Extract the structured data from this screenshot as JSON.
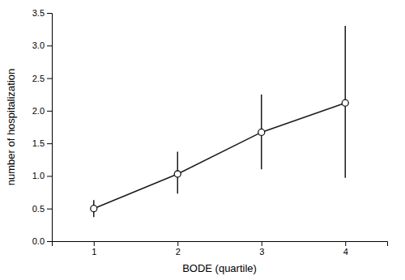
{
  "chart_data": {
    "type": "line",
    "xlabel": "BODE (quartile)",
    "ylabel": "number of hospitalization",
    "x": [
      1,
      2,
      3,
      4
    ],
    "values": [
      0.5,
      1.03,
      1.67,
      2.12
    ],
    "upper": [
      0.63,
      1.37,
      2.25,
      3.3
    ],
    "lower": [
      0.37,
      0.73,
      1.1,
      0.97
    ],
    "color": "#1a1a1a",
    "marker": "circle",
    "line_style": "solid",
    "grid": false,
    "xlim": [
      0.5,
      4.5
    ],
    "ylim": [
      0,
      3.5
    ],
    "xticks": [
      1,
      2,
      3,
      4
    ],
    "yticks": [
      {
        "value": 0,
        "label": "0.0"
      },
      0.5,
      {
        "value": 1.0,
        "label": "1.0"
      },
      1.5,
      {
        "value": 2.0,
        "label": "2.0"
      },
      2.5,
      {
        "value": 3.0,
        "label": "3.0"
      },
      3.5
    ]
  }
}
